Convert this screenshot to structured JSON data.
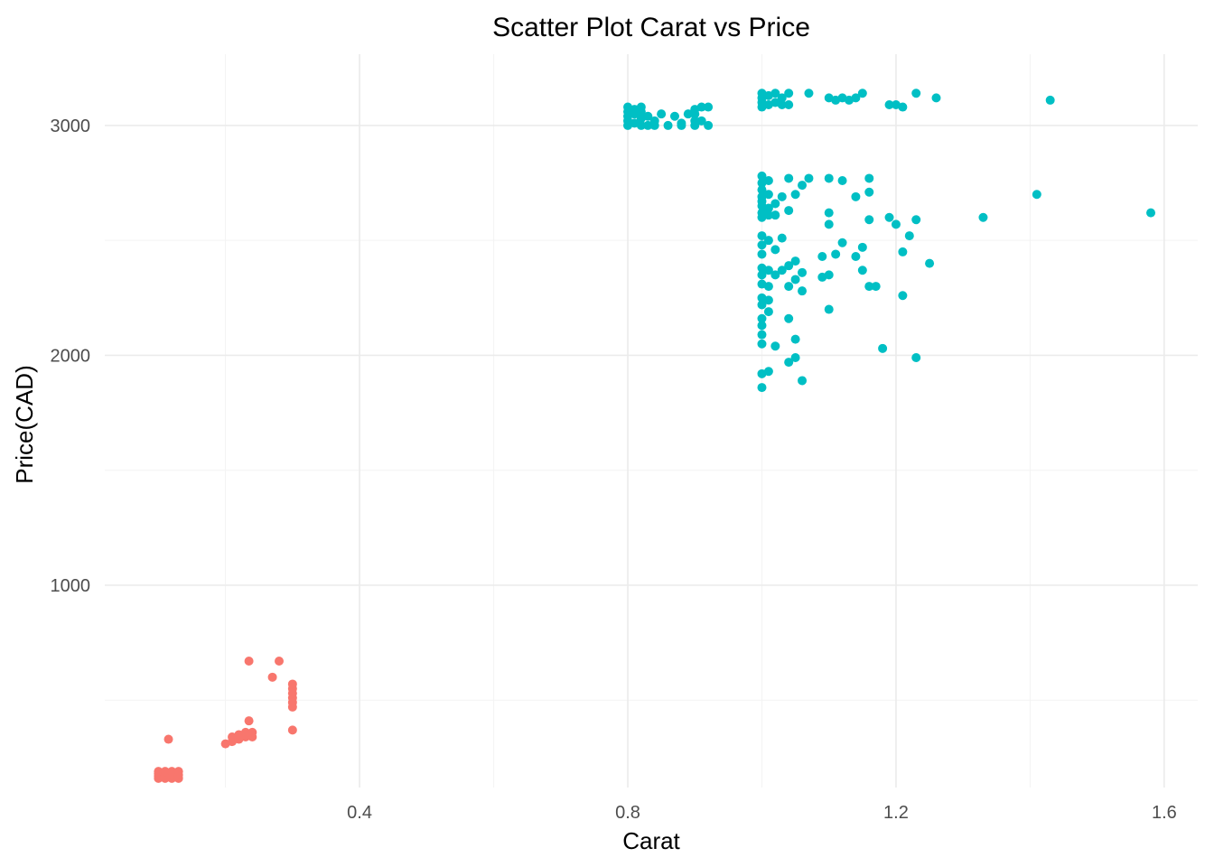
{
  "chart_data": {
    "type": "scatter",
    "title": "Scatter Plot Carat vs Price",
    "xlabel": "Carat",
    "ylabel": "Price(CAD)",
    "xlim": [
      0.02,
      1.65
    ],
    "ylim": [
      120,
      3310
    ],
    "x_ticks": [
      0.4,
      0.8,
      1.2,
      1.6
    ],
    "x_tick_labels": [
      "0.4",
      "0.8",
      "1.2",
      "1.6"
    ],
    "y_ticks": [
      1000,
      2000,
      3000
    ],
    "y_tick_labels": [
      "1000",
      "2000",
      "3000"
    ],
    "grid": true,
    "legend": "none",
    "colors": {
      "group_small": "#f8766d",
      "group_large": "#00bfc4"
    },
    "series": [
      {
        "color": "#f8766d",
        "points": [
          [
            0.1,
            160
          ],
          [
            0.1,
            170
          ],
          [
            0.1,
            180
          ],
          [
            0.1,
            190
          ],
          [
            0.11,
            160
          ],
          [
            0.11,
            175
          ],
          [
            0.11,
            190
          ],
          [
            0.12,
            160
          ],
          [
            0.12,
            175
          ],
          [
            0.12,
            190
          ],
          [
            0.13,
            160
          ],
          [
            0.13,
            175
          ],
          [
            0.13,
            190
          ],
          [
            0.115,
            330
          ],
          [
            0.2,
            310
          ],
          [
            0.21,
            320
          ],
          [
            0.21,
            340
          ],
          [
            0.22,
            330
          ],
          [
            0.22,
            350
          ],
          [
            0.23,
            340
          ],
          [
            0.23,
            360
          ],
          [
            0.24,
            340
          ],
          [
            0.24,
            360
          ],
          [
            0.235,
            410
          ],
          [
            0.235,
            670
          ],
          [
            0.28,
            670
          ],
          [
            0.27,
            600
          ],
          [
            0.3,
            370
          ],
          [
            0.3,
            470
          ],
          [
            0.3,
            490
          ],
          [
            0.3,
            510
          ],
          [
            0.3,
            530
          ],
          [
            0.3,
            550
          ],
          [
            0.3,
            570
          ]
        ]
      },
      {
        "color": "#00bfc4",
        "points": [
          [
            0.8,
            3000
          ],
          [
            0.8,
            3020
          ],
          [
            0.8,
            3040
          ],
          [
            0.8,
            3060
          ],
          [
            0.8,
            3080
          ],
          [
            0.81,
            3010
          ],
          [
            0.81,
            3050
          ],
          [
            0.81,
            3070
          ],
          [
            0.82,
            3000
          ],
          [
            0.82,
            3030
          ],
          [
            0.82,
            3060
          ],
          [
            0.82,
            3080
          ],
          [
            0.83,
            3000
          ],
          [
            0.83,
            3040
          ],
          [
            0.84,
            3000
          ],
          [
            0.84,
            3020
          ],
          [
            0.85,
            3050
          ],
          [
            0.86,
            3000
          ],
          [
            0.87,
            3040
          ],
          [
            0.88,
            3000
          ],
          [
            0.88,
            3010
          ],
          [
            0.89,
            3050
          ],
          [
            0.9,
            3000
          ],
          [
            0.9,
            3020
          ],
          [
            0.9,
            3050
          ],
          [
            0.9,
            3070
          ],
          [
            0.91,
            3020
          ],
          [
            0.91,
            3080
          ],
          [
            0.92,
            3000
          ],
          [
            0.92,
            3080
          ],
          [
            1.0,
            3080
          ],
          [
            1.0,
            3100
          ],
          [
            1.0,
            3120
          ],
          [
            1.0,
            3140
          ],
          [
            1.01,
            3090
          ],
          [
            1.01,
            3130
          ],
          [
            1.02,
            3100
          ],
          [
            1.02,
            3140
          ],
          [
            1.03,
            3090
          ],
          [
            1.03,
            3120
          ],
          [
            1.04,
            3090
          ],
          [
            1.04,
            3140
          ],
          [
            1.07,
            3140
          ],
          [
            1.1,
            3120
          ],
          [
            1.11,
            3110
          ],
          [
            1.12,
            3120
          ],
          [
            1.13,
            3110
          ],
          [
            1.14,
            3120
          ],
          [
            1.15,
            3140
          ],
          [
            1.19,
            3090
          ],
          [
            1.2,
            3090
          ],
          [
            1.21,
            3080
          ],
          [
            1.23,
            3140
          ],
          [
            1.26,
            3120
          ],
          [
            1.43,
            3110
          ],
          [
            1.0,
            2780
          ],
          [
            1.0,
            2750
          ],
          [
            1.0,
            2720
          ],
          [
            1.0,
            2690
          ],
          [
            1.0,
            2670
          ],
          [
            1.0,
            2650
          ],
          [
            1.0,
            2620
          ],
          [
            1.0,
            2600
          ],
          [
            1.01,
            2760
          ],
          [
            1.01,
            2700
          ],
          [
            1.01,
            2640
          ],
          [
            1.01,
            2610
          ],
          [
            1.02,
            2660
          ],
          [
            1.02,
            2610
          ],
          [
            1.03,
            2690
          ],
          [
            1.04,
            2770
          ],
          [
            1.04,
            2630
          ],
          [
            1.05,
            2700
          ],
          [
            1.06,
            2740
          ],
          [
            1.07,
            2770
          ],
          [
            1.1,
            2770
          ],
          [
            1.1,
            2620
          ],
          [
            1.1,
            2570
          ],
          [
            1.12,
            2760
          ],
          [
            1.14,
            2690
          ],
          [
            1.16,
            2770
          ],
          [
            1.16,
            2710
          ],
          [
            1.16,
            2590
          ],
          [
            1.19,
            2600
          ],
          [
            1.2,
            2570
          ],
          [
            1.22,
            2520
          ],
          [
            1.23,
            2590
          ],
          [
            1.21,
            2450
          ],
          [
            1.25,
            2400
          ],
          [
            1.33,
            2600
          ],
          [
            1.41,
            2700
          ],
          [
            1.58,
            2620
          ],
          [
            1.0,
            2520
          ],
          [
            1.0,
            2480
          ],
          [
            1.0,
            2440
          ],
          [
            1.0,
            2380
          ],
          [
            1.0,
            2350
          ],
          [
            1.0,
            2310
          ],
          [
            1.0,
            2250
          ],
          [
            1.0,
            2220
          ],
          [
            1.0,
            2160
          ],
          [
            1.0,
            2130
          ],
          [
            1.0,
            2090
          ],
          [
            1.0,
            2050
          ],
          [
            1.01,
            2500
          ],
          [
            1.01,
            2370
          ],
          [
            1.01,
            2300
          ],
          [
            1.01,
            2240
          ],
          [
            1.01,
            2190
          ],
          [
            1.02,
            2460
          ],
          [
            1.02,
            2350
          ],
          [
            1.03,
            2510
          ],
          [
            1.03,
            2370
          ],
          [
            1.04,
            2300
          ],
          [
            1.04,
            2390
          ],
          [
            1.04,
            2160
          ],
          [
            1.05,
            2410
          ],
          [
            1.05,
            2330
          ],
          [
            1.06,
            2360
          ],
          [
            1.06,
            2280
          ],
          [
            1.05,
            2070
          ],
          [
            1.02,
            2040
          ],
          [
            1.04,
            1970
          ],
          [
            1.05,
            1990
          ],
          [
            1.06,
            1890
          ],
          [
            1.0,
            1920
          ],
          [
            1.01,
            1930
          ],
          [
            1.0,
            1860
          ],
          [
            1.09,
            2430
          ],
          [
            1.09,
            2340
          ],
          [
            1.1,
            2350
          ],
          [
            1.1,
            2200
          ],
          [
            1.11,
            2440
          ],
          [
            1.12,
            2490
          ],
          [
            1.14,
            2430
          ],
          [
            1.15,
            2470
          ],
          [
            1.15,
            2370
          ],
          [
            1.16,
            2300
          ],
          [
            1.17,
            2300
          ],
          [
            1.18,
            2030
          ],
          [
            1.21,
            2260
          ],
          [
            1.23,
            1990
          ]
        ]
      }
    ]
  }
}
